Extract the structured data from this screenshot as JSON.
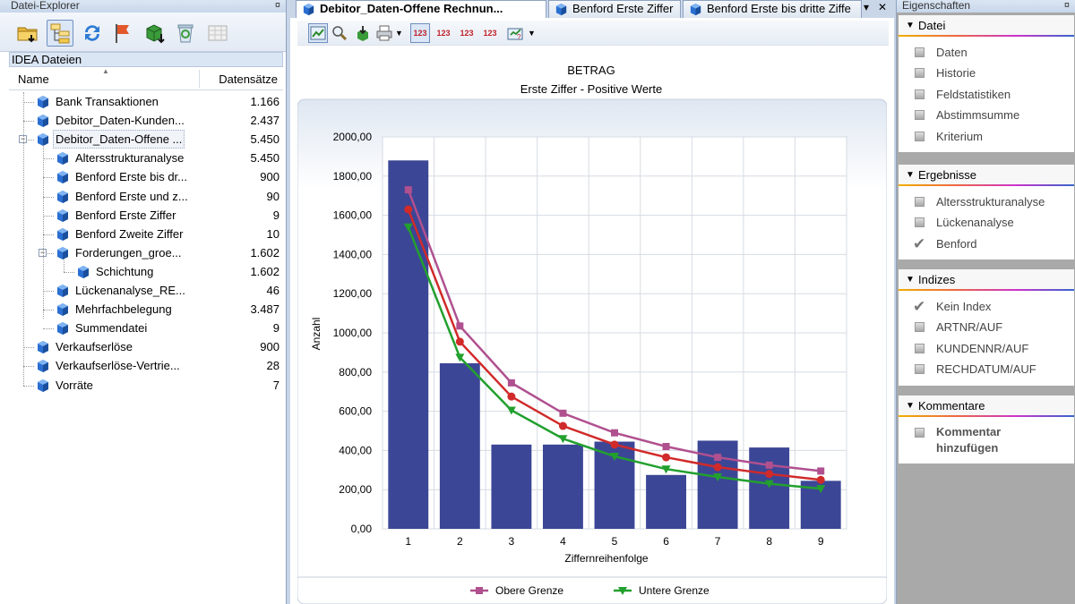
{
  "left_panel": {
    "title": "Datei-Explorer",
    "pin": "¤",
    "toolbar_icons": [
      "open-folder-icon",
      "tree-view-icon",
      "refresh-icon",
      "flag-icon",
      "export-icon",
      "recycle-bin-icon",
      "grid-icon"
    ],
    "section_header": "IDEA Dateien",
    "columns": {
      "name": "Name",
      "count": "Datensätze"
    },
    "files": [
      {
        "name": "Bank Transaktionen",
        "count": "1.166",
        "level": 0
      },
      {
        "name": "Debitor_Daten-Kunden...",
        "count": "2.437",
        "level": 0
      },
      {
        "name": "Debitor_Daten-Offene ...",
        "count": "5.450",
        "level": 0,
        "selected": true,
        "expanded": true
      },
      {
        "name": "Altersstrukturanalyse",
        "count": "5.450",
        "level": 1
      },
      {
        "name": "Benford Erste bis dr...",
        "count": "900",
        "level": 1
      },
      {
        "name": "Benford Erste und z...",
        "count": "90",
        "level": 1
      },
      {
        "name": "Benford Erste Ziffer",
        "count": "9",
        "level": 1
      },
      {
        "name": "Benford Zweite Ziffer",
        "count": "10",
        "level": 1
      },
      {
        "name": "Forderungen_groe...",
        "count": "1.602",
        "level": 1,
        "expanded": true
      },
      {
        "name": "Schichtung",
        "count": "1.602",
        "level": 2
      },
      {
        "name": "Lückenanalyse_RE...",
        "count": "46",
        "level": 1
      },
      {
        "name": "Mehrfachbelegung",
        "count": "3.487",
        "level": 1
      },
      {
        "name": "Summendatei",
        "count": "9",
        "level": 1
      },
      {
        "name": "Verkaufserlöse",
        "count": "900",
        "level": 0
      },
      {
        "name": "Verkaufserlöse-Vertrie...",
        "count": "28",
        "level": 0
      },
      {
        "name": "Vorräte",
        "count": "7",
        "level": 0
      }
    ]
  },
  "tabs": [
    {
      "label": "Debitor_Daten-Offene Rechnun...",
      "active": true
    },
    {
      "label": "Benford Erste Ziffer",
      "active": false
    },
    {
      "label": "Benford Erste bis dritte Ziffe",
      "active": false
    }
  ],
  "tab_controls": {
    "dropdown": "▾",
    "close": "✕"
  },
  "chart_toolbar": {
    "icons": [
      "chart-icon",
      "zoom-icon",
      "export-icon",
      "print-icon",
      "dropdown-icon",
      "digits-1-icon",
      "digits-12-icon",
      "digits-123-icon",
      "digits-123b-icon",
      "digit-help-icon",
      "dropdown-icon"
    ],
    "digit_labels": [
      "123",
      "123",
      "123",
      "123"
    ]
  },
  "chart_data": {
    "type": "bar",
    "title": "BETRAG",
    "subtitle": "Erste Ziffer - Positive Werte",
    "xlabel": "Ziffernreihenfolge",
    "ylabel": "Anzahl",
    "categories": [
      "1",
      "2",
      "3",
      "4",
      "5",
      "6",
      "7",
      "8",
      "9"
    ],
    "ylim": [
      0,
      2000
    ],
    "y_ticks": [
      "0,00",
      "200,00",
      "400,00",
      "600,00",
      "800,00",
      "1000,00",
      "1200,00",
      "1400,00",
      "1600,00",
      "1800,00",
      "2000,00"
    ],
    "values": [
      1880,
      845,
      430,
      430,
      445,
      275,
      450,
      415,
      245
    ],
    "lines": [
      {
        "name": "Obere Grenze",
        "color": "#b0508f",
        "marker": "square",
        "values": [
          1730,
          1035,
          745,
          590,
          490,
          420,
          365,
          325,
          295
        ]
      },
      {
        "name": "",
        "color": "#d12a2a",
        "marker": "circle",
        "values": [
          1630,
          955,
          675,
          525,
          430,
          365,
          315,
          280,
          250
        ]
      },
      {
        "name": "Untere Grenze",
        "color": "#22a02e",
        "marker": "triangle",
        "values": [
          1540,
          875,
          605,
          460,
          370,
          305,
          265,
          230,
          205
        ]
      }
    ],
    "grid": true,
    "legend": "bottom",
    "bar_color": "#3c4696"
  },
  "right_panel": {
    "title": "Eigenschaften",
    "pin": "¤",
    "sections": [
      {
        "title": "Datei",
        "items": [
          {
            "label": "Daten",
            "mark": "bullet"
          },
          {
            "label": "Historie",
            "mark": "bullet"
          },
          {
            "label": "Feldstatistiken",
            "mark": "bullet"
          },
          {
            "label": "Abstimmsumme",
            "mark": "bullet"
          },
          {
            "label": "Kriterium",
            "mark": "bullet"
          }
        ]
      },
      {
        "title": "Ergebnisse",
        "items": [
          {
            "label": "Altersstrukturanalyse",
            "mark": "bullet"
          },
          {
            "label": "Lückenanalyse",
            "mark": "bullet"
          },
          {
            "label": "Benford",
            "mark": "check"
          }
        ]
      },
      {
        "title": "Indizes",
        "items": [
          {
            "label": "Kein Index",
            "mark": "check"
          },
          {
            "label": "ARTNR/AUF",
            "mark": "bullet"
          },
          {
            "label": "KUNDENNR/AUF",
            "mark": "bullet"
          },
          {
            "label": "RECHDATUM/AUF",
            "mark": "bullet"
          }
        ]
      },
      {
        "title": "Kommentare",
        "items": [
          {
            "label": "Kommentar hinzufügen",
            "mark": "bullet",
            "bold": true
          }
        ]
      }
    ]
  }
}
